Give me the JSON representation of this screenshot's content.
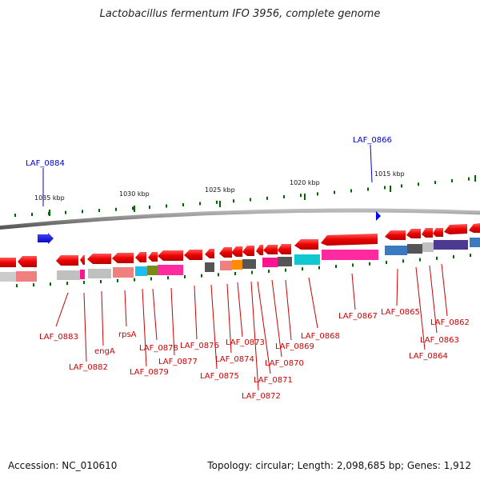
{
  "title": "Lactobacillus fermentum IFO 3956, complete genome",
  "footer": {
    "accession": "Accession: NC_010610",
    "topology": "Topology: circular; Length: 2,098,685 bp; Genes: 1,912"
  },
  "ticks": [
    "1035 kbp",
    "1030 kbp",
    "1025 kbp",
    "1020 kbp",
    "1015 kbp"
  ],
  "genes_top_strand": [
    "LAF_0884",
    "LAF_0866"
  ],
  "genes_bottom_strand": [
    "LAF_0883",
    "LAF_0882",
    "engA",
    "rpsA",
    "LAF_0879",
    "LAF_0878",
    "LAF_0877",
    "LAF_0876",
    "LAF_0875",
    "LAF_0874",
    "LAF_0873",
    "LAF_0872",
    "LAF_0871",
    "LAF_0870",
    "LAF_0869",
    "LAF_0868",
    "LAF_0867",
    "LAF_0865",
    "LAF_0864",
    "LAF_0863",
    "LAF_0862"
  ],
  "colors": {
    "gene_forward": "#0000ff",
    "gene_reverse": "#ee0000",
    "backbone": "#888888",
    "tick": "#006600",
    "label_red": "#cc0000",
    "label_blue": "#0000cc"
  }
}
